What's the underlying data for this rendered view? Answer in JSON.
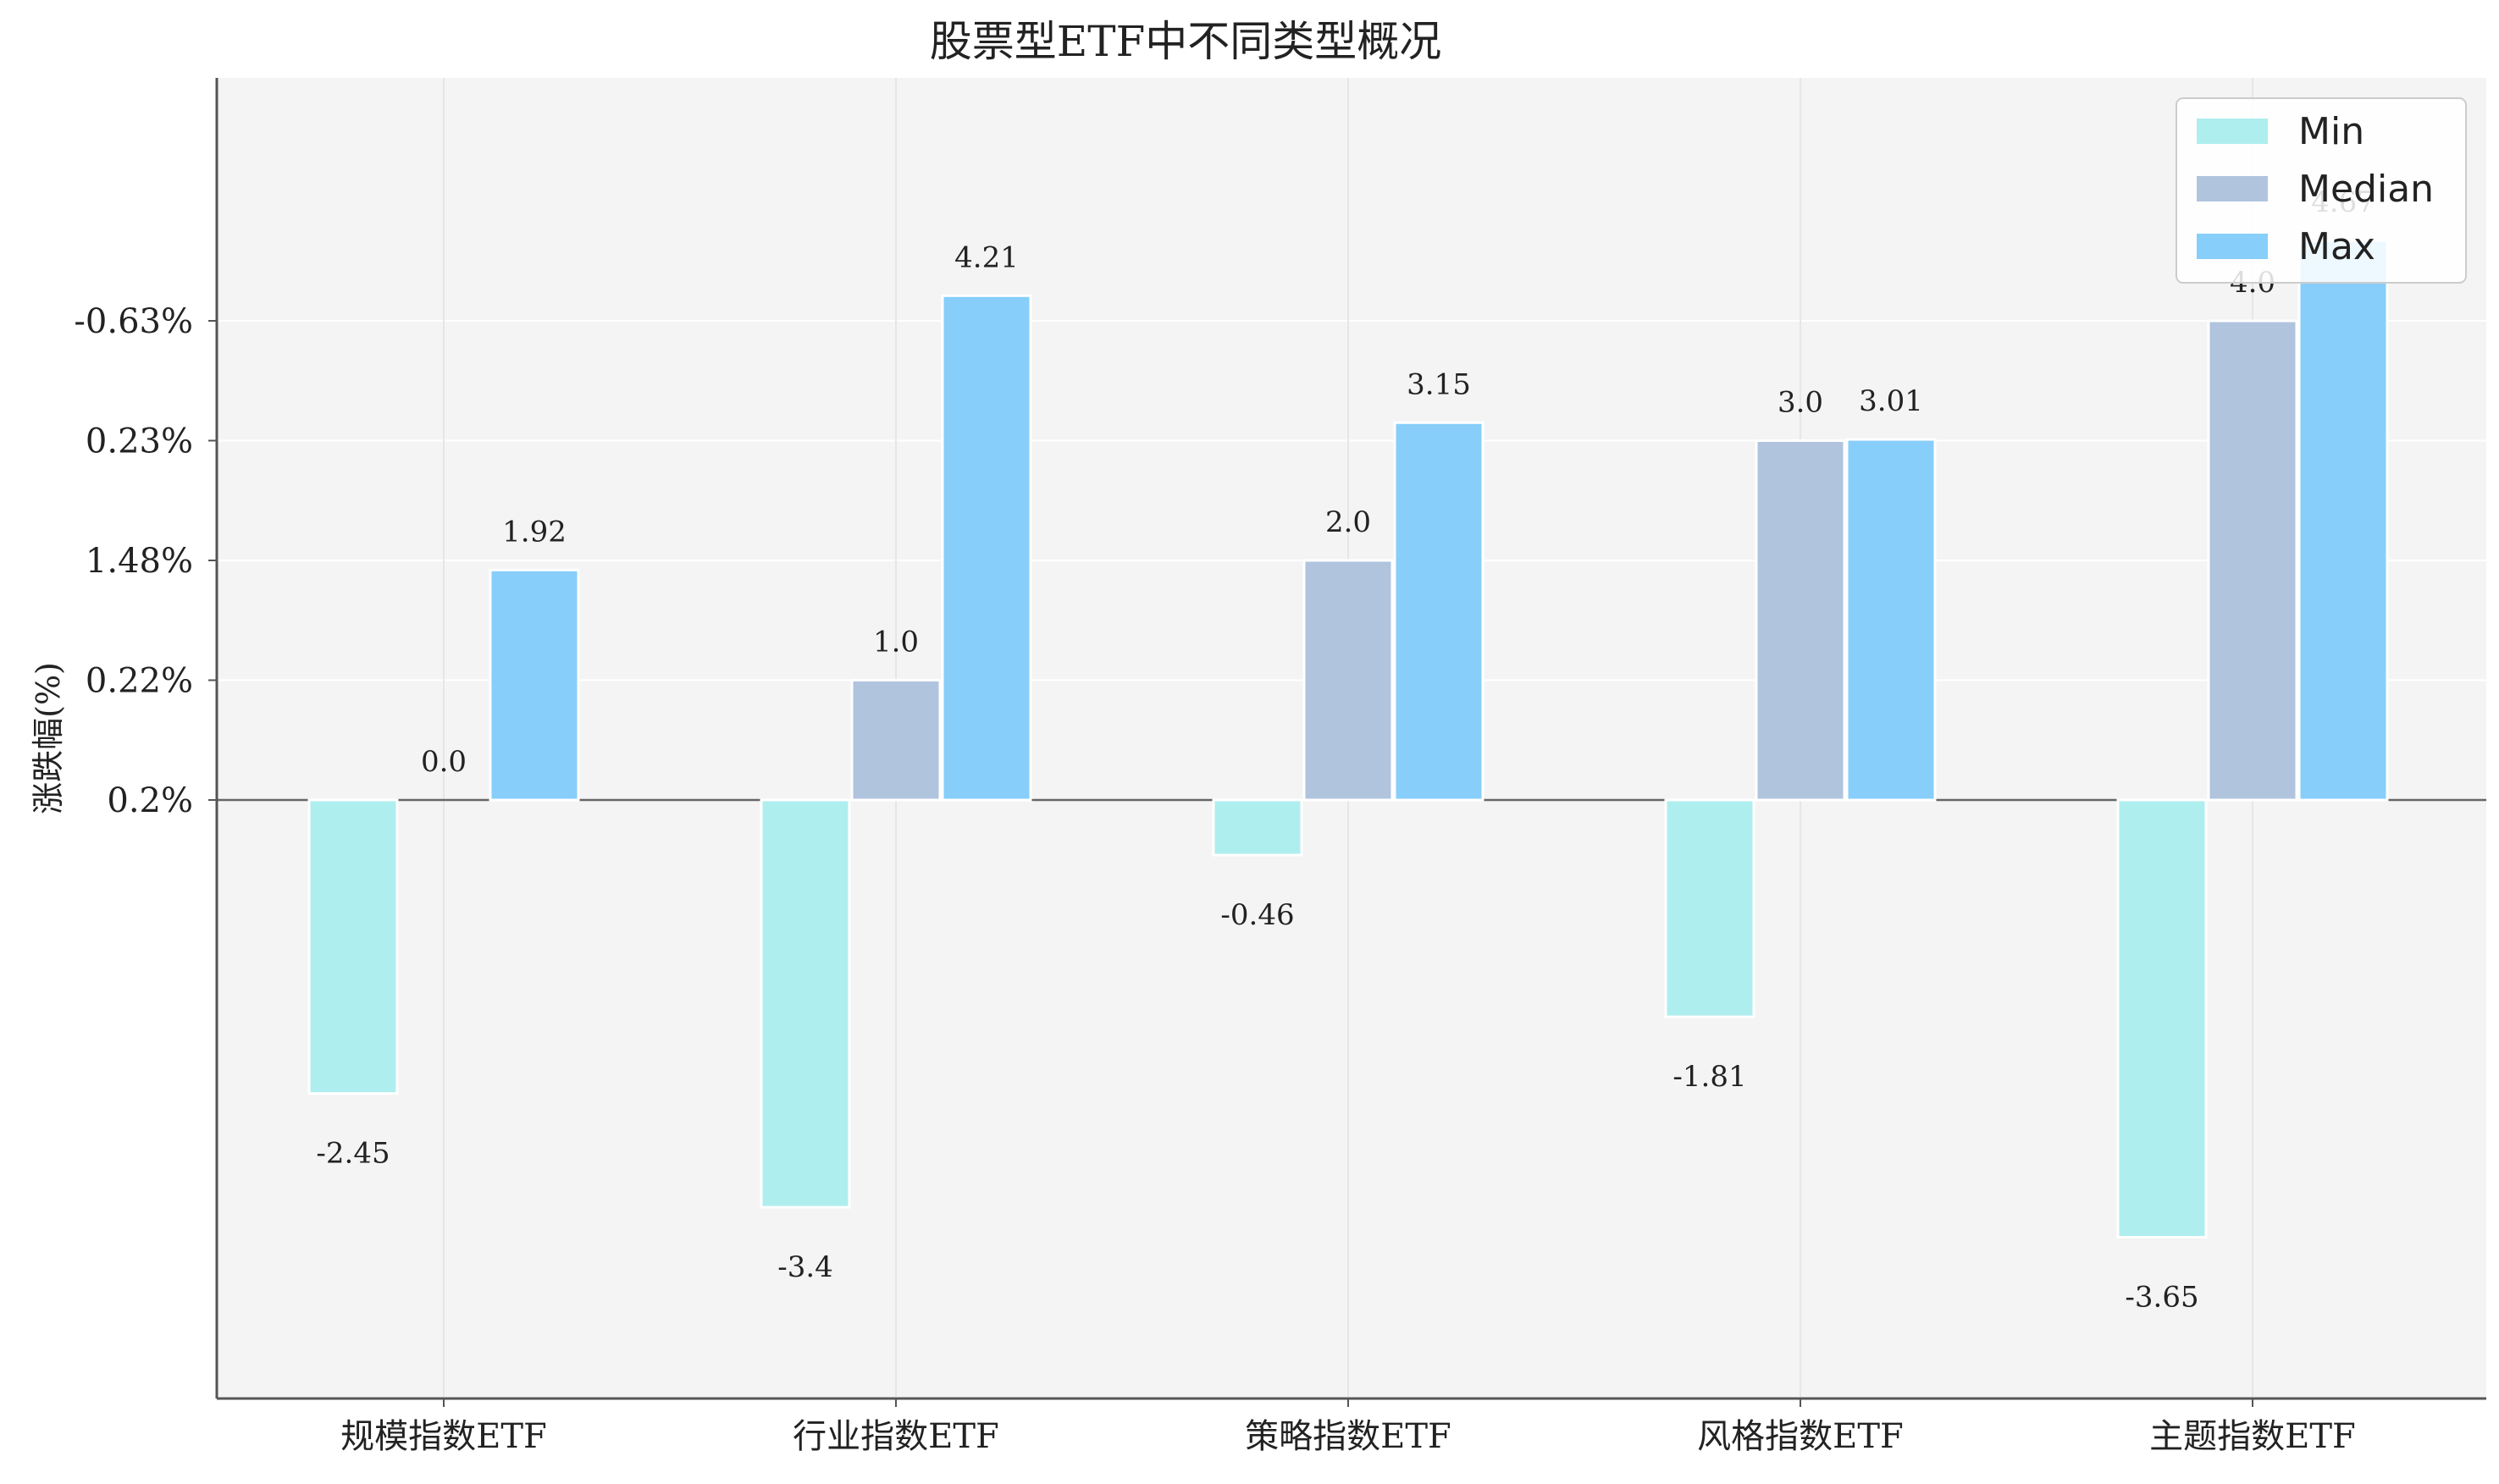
{
  "chart_data": {
    "type": "bar",
    "title": "股票型ETF中不同类型概况",
    "ylabel": "涨跌幅(%)",
    "xlabel": "",
    "categories": [
      "规模指数ETF",
      "行业指数ETF",
      "策略指数ETF",
      "风格指数ETF",
      "主题指数ETF"
    ],
    "series": [
      {
        "name": "Min",
        "values": [
          -2.45,
          -3.4,
          -0.46,
          -1.81,
          -3.65
        ],
        "color": "#afeeee"
      },
      {
        "name": "Median",
        "values": [
          0.0,
          1.0,
          2.0,
          3.0,
          4.0
        ],
        "color": "#b0c4de"
      },
      {
        "name": "Max",
        "values": [
          1.92,
          4.21,
          3.15,
          3.01,
          4.67
        ],
        "color": "#87cefa"
      }
    ],
    "data_labels": [
      [
        "-2.45",
        "-3.4",
        "-0.46",
        "-1.81",
        "-3.65"
      ],
      [
        "0.0",
        "1.0",
        "2.0",
        "3.0",
        "4.0"
      ],
      [
        "1.92",
        "4.21",
        "3.15",
        "3.01",
        "4.67"
      ]
    ],
    "yticks": [
      {
        "value": 0,
        "label": "0.2%"
      },
      {
        "value": 1,
        "label": "0.22%"
      },
      {
        "value": 2,
        "label": "1.48%"
      },
      {
        "value": 3,
        "label": "0.23%"
      },
      {
        "value": 4,
        "label": "-0.63%"
      }
    ],
    "ylim": [
      -5,
      6
    ],
    "grid": true,
    "legend_position": "top-right"
  }
}
